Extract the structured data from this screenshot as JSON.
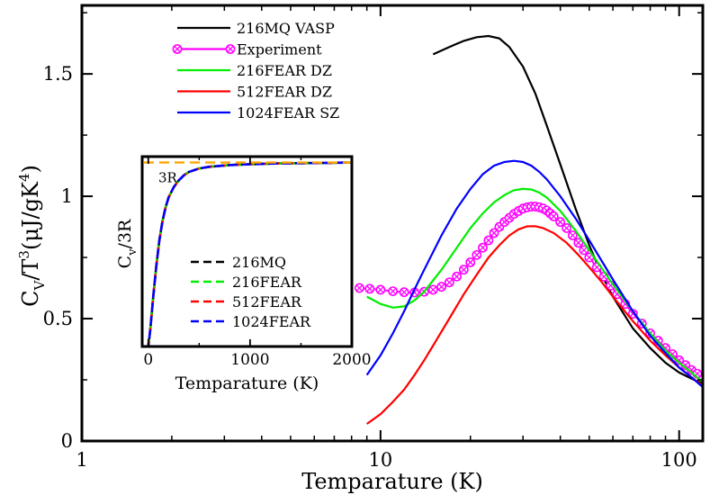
{
  "chart_data": [
    {
      "id": "main",
      "type": "line",
      "xscale": "log",
      "xlim": [
        1,
        120
      ],
      "ylim": [
        0,
        1.78
      ],
      "xlabel": "Temparature (K)",
      "ylabel": {
        "base": "C",
        "sub": "V",
        "mid": "/T",
        "sup": "3",
        "unit_open": "(μJ/gK",
        "unit_sup": "4",
        "unit_close": ")"
      },
      "xticks": [
        {
          "value": 1,
          "label": "1"
        },
        {
          "value": 10,
          "label": "10"
        },
        {
          "value": 100,
          "label": "100"
        }
      ],
      "yticks": [
        {
          "value": 0,
          "label": "0"
        },
        {
          "value": 0.5,
          "label": "0.5"
        },
        {
          "value": 1,
          "label": "1"
        },
        {
          "value": 1.5,
          "label": "1.5"
        }
      ],
      "legend_position": "top-left",
      "series": [
        {
          "name": "216MQ VASP",
          "color": "#000000",
          "style": "solid",
          "x": [
            15,
            17,
            19,
            21,
            23,
            25,
            27,
            30,
            33,
            36,
            40,
            45,
            50,
            55,
            60,
            70,
            80,
            90,
            100,
            110,
            120
          ],
          "y": [
            1.58,
            1.61,
            1.635,
            1.65,
            1.655,
            1.645,
            1.61,
            1.53,
            1.42,
            1.29,
            1.13,
            0.95,
            0.8,
            0.68,
            0.59,
            0.46,
            0.38,
            0.32,
            0.28,
            0.255,
            0.235
          ]
        },
        {
          "name": "Experiment",
          "color": "#ff00ff",
          "style": "markers",
          "x": [
            8.5,
            9.2,
            10,
            11,
            12,
            13,
            14,
            15,
            16,
            17,
            18,
            19,
            20,
            21,
            22,
            23,
            24,
            25,
            26,
            27,
            28,
            29,
            30,
            31,
            32,
            33,
            34,
            35,
            36,
            37,
            38,
            40,
            42,
            44,
            46,
            48,
            50,
            53,
            56,
            59,
            62,
            66,
            70,
            75,
            80,
            85,
            90,
            95,
            100,
            105,
            110,
            115
          ],
          "y": [
            0.625,
            0.622,
            0.618,
            0.612,
            0.608,
            0.607,
            0.61,
            0.618,
            0.63,
            0.648,
            0.672,
            0.7,
            0.73,
            0.76,
            0.79,
            0.82,
            0.85,
            0.875,
            0.895,
            0.912,
            0.928,
            0.94,
            0.95,
            0.955,
            0.958,
            0.958,
            0.955,
            0.95,
            0.942,
            0.93,
            0.918,
            0.895,
            0.87,
            0.84,
            0.81,
            0.78,
            0.75,
            0.71,
            0.672,
            0.635,
            0.6,
            0.56,
            0.52,
            0.48,
            0.44,
            0.41,
            0.38,
            0.355,
            0.33,
            0.31,
            0.29,
            0.275
          ]
        },
        {
          "name": "216FEAR DZ",
          "color": "#00ee00",
          "style": "solid",
          "x": [
            9,
            10,
            11,
            12,
            13,
            14,
            16,
            18,
            20,
            22,
            24,
            26,
            28,
            30,
            32,
            34,
            36,
            40,
            45,
            50,
            60,
            70,
            80,
            90,
            100,
            110,
            120
          ],
          "y": [
            0.59,
            0.56,
            0.545,
            0.55,
            0.575,
            0.61,
            0.7,
            0.79,
            0.87,
            0.93,
            0.975,
            1.005,
            1.025,
            1.03,
            1.028,
            1.015,
            0.995,
            0.94,
            0.86,
            0.78,
            0.64,
            0.53,
            0.44,
            0.37,
            0.32,
            0.28,
            0.24
          ]
        },
        {
          "name": "512FEAR DZ",
          "color": "#ff0000",
          "style": "solid",
          "x": [
            9,
            10,
            11,
            12,
            13,
            14,
            15,
            17,
            19,
            21,
            23,
            25,
            27,
            29,
            31,
            33,
            35,
            38,
            42,
            46,
            50,
            55,
            60,
            70,
            80,
            90,
            100,
            110,
            120
          ],
          "y": [
            0.07,
            0.11,
            0.16,
            0.21,
            0.27,
            0.33,
            0.39,
            0.5,
            0.6,
            0.68,
            0.75,
            0.8,
            0.84,
            0.865,
            0.877,
            0.878,
            0.87,
            0.85,
            0.81,
            0.76,
            0.71,
            0.65,
            0.59,
            0.49,
            0.41,
            0.35,
            0.3,
            0.26,
            0.225
          ]
        },
        {
          "name": "1024FEAR SZ",
          "color": "#0000ff",
          "style": "solid",
          "x": [
            9,
            10,
            11,
            12,
            13,
            14,
            16,
            18,
            20,
            22,
            24,
            26,
            28,
            30,
            32,
            34,
            36,
            40,
            45,
            50,
            60,
            70,
            80,
            90,
            100,
            110,
            120
          ],
          "y": [
            0.27,
            0.35,
            0.44,
            0.53,
            0.62,
            0.7,
            0.84,
            0.95,
            1.03,
            1.09,
            1.125,
            1.14,
            1.145,
            1.14,
            1.125,
            1.1,
            1.07,
            1.0,
            0.91,
            0.82,
            0.66,
            0.53,
            0.43,
            0.36,
            0.3,
            0.26,
            0.22
          ]
        }
      ]
    },
    {
      "id": "inset",
      "type": "line",
      "xscale": "linear",
      "xlim": [
        -60,
        2000
      ],
      "ylim": [
        0,
        1.12
      ],
      "xlabel": "Temparature (K)",
      "ylabel": {
        "base": "C",
        "sub": "v",
        "mid": "/3R"
      },
      "xticks": [
        {
          "value": 0,
          "label": "0"
        },
        {
          "value": 1000,
          "label": "1000"
        },
        {
          "value": 2000,
          "label": "2000"
        }
      ],
      "legend_position": "bottom-right",
      "reference_line": {
        "label": "3R",
        "value": 1.085,
        "color": "#ffa500"
      },
      "series": [
        {
          "name": "216MQ",
          "color": "#000000",
          "style": "dashed",
          "x": [
            0,
            20,
            50,
            80,
            110,
            140,
            170,
            200,
            250,
            300,
            350,
            400,
            500,
            600,
            800,
            1000,
            1300,
            1600,
            2000
          ],
          "y": [
            0,
            0.1,
            0.3,
            0.48,
            0.63,
            0.74,
            0.82,
            0.88,
            0.94,
            0.98,
            1.01,
            1.03,
            1.05,
            1.06,
            1.07,
            1.075,
            1.08,
            1.082,
            1.085
          ]
        },
        {
          "name": "216FEAR",
          "color": "#00ee00",
          "style": "dashed",
          "x": [
            0,
            20,
            50,
            80,
            110,
            140,
            170,
            200,
            250,
            300,
            350,
            400,
            500,
            600,
            800,
            1000,
            1300,
            1600,
            2000
          ],
          "y": [
            0,
            0.1,
            0.3,
            0.48,
            0.63,
            0.74,
            0.82,
            0.88,
            0.94,
            0.98,
            1.01,
            1.03,
            1.05,
            1.06,
            1.07,
            1.075,
            1.08,
            1.082,
            1.085
          ]
        },
        {
          "name": "512FEAR",
          "color": "#ff0000",
          "style": "dashed",
          "x": [
            0,
            20,
            50,
            80,
            110,
            140,
            170,
            200,
            250,
            300,
            350,
            400,
            500,
            600,
            800,
            1000,
            1300,
            1600,
            2000
          ],
          "y": [
            0,
            0.1,
            0.3,
            0.48,
            0.63,
            0.74,
            0.82,
            0.88,
            0.94,
            0.98,
            1.01,
            1.03,
            1.05,
            1.06,
            1.07,
            1.075,
            1.08,
            1.082,
            1.085
          ]
        },
        {
          "name": "1024FEAR",
          "color": "#0000ff",
          "style": "dashed",
          "x": [
            0,
            20,
            50,
            80,
            110,
            140,
            170,
            200,
            250,
            300,
            350,
            400,
            500,
            600,
            800,
            1000,
            1300,
            1600,
            2000
          ],
          "y": [
            0,
            0.1,
            0.3,
            0.48,
            0.63,
            0.74,
            0.82,
            0.88,
            0.94,
            0.98,
            1.01,
            1.03,
            1.05,
            1.06,
            1.07,
            1.075,
            1.08,
            1.082,
            1.085
          ]
        }
      ]
    }
  ]
}
